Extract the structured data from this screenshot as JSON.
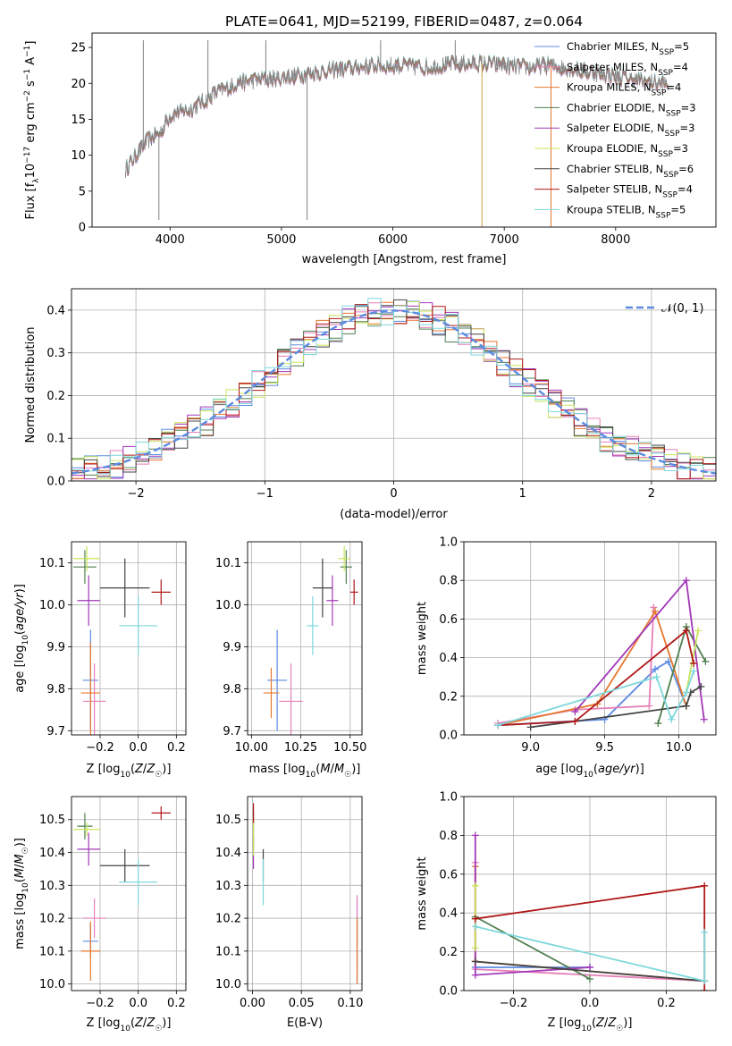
{
  "colors": {
    "Chabrier MILES": "#5b8be0",
    "Salpeter MILES": "#e67fb8",
    "Kroupa MILES": "#e6772e",
    "Chabrier ELODIE": "#4f7f4f",
    "Salpeter ELODIE": "#a238b8",
    "Kroupa ELODIE": "#c8e65a",
    "Chabrier STELIB": "#444444",
    "Salpeter STELIB": "#b01818",
    "Kroupa STELIB": "#7dd8dc",
    "normal_curve": "#5b8be0",
    "spectrum_gray": "#808080"
  },
  "chart_data": [
    {
      "id": "spectrum",
      "type": "line",
      "title": "PLATE=0641, MJD=52199, FIBERID=0487, z=0.064",
      "xlabel": "wavelength [Angstrom, rest frame]",
      "ylabel": "Flux [f_λ 10^-17 erg cm^-2 s^-1 A^-1]",
      "xlim": [
        3300,
        8900
      ],
      "ylim": [
        0,
        27
      ],
      "xticks": [
        4000,
        5000,
        6000,
        7000,
        8000
      ],
      "yticks": [
        0,
        5,
        10,
        15,
        20,
        25
      ],
      "grid": false,
      "legend_position": "right",
      "legend": [
        {
          "name": "Chabrier MILES",
          "nssp": "5"
        },
        {
          "name": "Salpeter MILES",
          "nssp": "4"
        },
        {
          "name": "Kroupa MILES",
          "nssp": "4"
        },
        {
          "name": "Chabrier ELODIE",
          "nssp": "3"
        },
        {
          "name": "Salpeter ELODIE",
          "nssp": "3"
        },
        {
          "name": "Kroupa ELODIE",
          "nssp": "3"
        },
        {
          "name": "Chabrier STELIB",
          "nssp": "6"
        },
        {
          "name": "Salpeter STELIB",
          "nssp": "4"
        },
        {
          "name": "Kroupa STELIB",
          "nssp": "5"
        }
      ],
      "continuum": [
        [
          3600,
          8
        ],
        [
          3700,
          10
        ],
        [
          3800,
          12
        ],
        [
          3900,
          13
        ],
        [
          4000,
          15.5
        ],
        [
          4200,
          16.5
        ],
        [
          4400,
          18.5
        ],
        [
          4600,
          20
        ],
        [
          4800,
          20.5
        ],
        [
          5000,
          20.8
        ],
        [
          5200,
          21.2
        ],
        [
          5400,
          21.8
        ],
        [
          5600,
          22
        ],
        [
          5800,
          22.5
        ],
        [
          6000,
          22.5
        ],
        [
          6200,
          22.2
        ],
        [
          6400,
          22.5
        ],
        [
          6600,
          22.7
        ],
        [
          6800,
          22.8
        ],
        [
          7000,
          22.5
        ],
        [
          7200,
          22.2
        ],
        [
          7400,
          22.5
        ],
        [
          7600,
          22
        ],
        [
          7800,
          21.5
        ],
        [
          8000,
          21
        ],
        [
          8200,
          20.5
        ],
        [
          8400,
          20
        ]
      ],
      "spikes": [
        [
          3760,
          26
        ],
        [
          3900,
          1
        ],
        [
          4340,
          26
        ],
        [
          4860,
          26
        ],
        [
          5230,
          1
        ],
        [
          5890,
          26
        ],
        [
          6560,
          26
        ],
        [
          6800,
          0
        ],
        [
          7420,
          0
        ]
      ]
    },
    {
      "id": "residuals",
      "type": "histogram",
      "xlabel": "(data-model)/error",
      "ylabel": "Normed distribution",
      "xlim": [
        -2.5,
        2.5
      ],
      "ylim": [
        0,
        0.45
      ],
      "xticks": [
        -2,
        -1,
        0,
        1,
        2
      ],
      "yticks": [
        0.0,
        0.1,
        0.2,
        0.3,
        0.4
      ],
      "grid": true,
      "legend_position": "top-right",
      "reference_label": "𝒩(0, 1)",
      "bins": [
        -2.5,
        2.5,
        50
      ]
    },
    {
      "id": "age_vs_Z",
      "type": "scatter",
      "xlabel": "Z [log10(Z/Z☉)]",
      "ylabel": "age [log10(age/yr)]",
      "xlim": [
        -0.35,
        0.25
      ],
      "ylim": [
        9.69,
        10.15
      ],
      "xticks": [
        -0.2,
        0.0,
        0.2
      ],
      "yticks": [
        9.7,
        9.8,
        9.9,
        10.0,
        10.1
      ],
      "grid": true,
      "points": [
        {
          "s": "Chabrier MILES",
          "x": -0.25,
          "xerr": 0.04,
          "y": 9.82,
          "yerr": 0.12
        },
        {
          "s": "Salpeter MILES",
          "x": -0.23,
          "xerr": 0.06,
          "y": 9.77,
          "yerr": 0.09
        },
        {
          "s": "Kroupa MILES",
          "x": -0.25,
          "xerr": 0.05,
          "y": 9.79,
          "yerr": 0.12
        },
        {
          "s": "Chabrier ELODIE",
          "x": -0.28,
          "xerr": 0.06,
          "y": 10.09,
          "yerr": 0.04
        },
        {
          "s": "Salpeter ELODIE",
          "x": -0.26,
          "xerr": 0.06,
          "y": 10.01,
          "yerr": 0.06
        },
        {
          "s": "Kroupa ELODIE",
          "x": -0.27,
          "xerr": 0.07,
          "y": 10.11,
          "yerr": 0.03
        },
        {
          "s": "Chabrier STELIB",
          "x": -0.07,
          "xerr": 0.13,
          "y": 10.04,
          "yerr": 0.07
        },
        {
          "s": "Salpeter STELIB",
          "x": 0.12,
          "xerr": 0.05,
          "y": 10.03,
          "yerr": 0.03
        },
        {
          "s": "Kroupa STELIB",
          "x": 0.0,
          "xerr": 0.1,
          "y": 9.95,
          "yerr": 0.07
        }
      ]
    },
    {
      "id": "age_vs_mass",
      "type": "scatter",
      "xlabel": "mass [log10(M/M☉)]",
      "ylabel": "",
      "xlim": [
        9.98,
        10.56
      ],
      "ylim": [
        9.69,
        10.15
      ],
      "xticks": [
        10.0,
        10.25,
        10.5
      ],
      "yticks": [
        9.7,
        9.8,
        9.9,
        10.0,
        10.1
      ],
      "grid": true,
      "points": [
        {
          "s": "Chabrier MILES",
          "x": 10.13,
          "xerr": 0.05,
          "y": 9.82,
          "yerr": 0.12
        },
        {
          "s": "Salpeter MILES",
          "x": 10.2,
          "xerr": 0.06,
          "y": 9.77,
          "yerr": 0.09
        },
        {
          "s": "Kroupa MILES",
          "x": 10.1,
          "xerr": 0.04,
          "y": 9.79,
          "yerr": 0.06
        },
        {
          "s": "Chabrier ELODIE",
          "x": 10.48,
          "xerr": 0.03,
          "y": 10.09,
          "yerr": 0.04
        },
        {
          "s": "Salpeter ELODIE",
          "x": 10.41,
          "xerr": 0.03,
          "y": 10.01,
          "yerr": 0.06
        },
        {
          "s": "Kroupa ELODIE",
          "x": 10.47,
          "xerr": 0.03,
          "y": 10.11,
          "yerr": 0.03
        },
        {
          "s": "Chabrier STELIB",
          "x": 10.36,
          "xerr": 0.05,
          "y": 10.04,
          "yerr": 0.07
        },
        {
          "s": "Salpeter STELIB",
          "x": 10.52,
          "xerr": 0.02,
          "y": 10.03,
          "yerr": 0.03
        },
        {
          "s": "Kroupa STELIB",
          "x": 10.31,
          "xerr": 0.03,
          "y": 9.95,
          "yerr": 0.07
        }
      ]
    },
    {
      "id": "weight_vs_age",
      "type": "line",
      "xlabel": "age [log10(age/yr)]",
      "ylabel": "mass weight",
      "xlim": [
        8.55,
        10.25
      ],
      "ylim": [
        0,
        1
      ],
      "xticks": [
        9.0,
        9.5,
        10.0
      ],
      "yticks": [
        0.0,
        0.2,
        0.4,
        0.6,
        0.8,
        1.0
      ],
      "grid": true,
      "series": [
        {
          "s": "Chabrier MILES",
          "x": [
            8.78,
            9.5,
            9.84,
            9.93,
            10.05
          ],
          "y": [
            0.05,
            0.08,
            0.34,
            0.38,
            0.15
          ]
        },
        {
          "s": "Salpeter MILES",
          "x": [
            8.78,
            9.3,
            9.8,
            9.83
          ],
          "y": [
            0.06,
            0.13,
            0.15,
            0.66
          ]
        },
        {
          "s": "Kroupa MILES",
          "x": [
            8.78,
            9.45,
            9.84,
            10.05
          ],
          "y": [
            0.05,
            0.16,
            0.64,
            0.15
          ]
        },
        {
          "s": "Chabrier ELODIE",
          "x": [
            9.86,
            10.05,
            10.18
          ],
          "y": [
            0.06,
            0.56,
            0.38
          ]
        },
        {
          "s": "Salpeter ELODIE",
          "x": [
            9.3,
            10.05,
            10.17
          ],
          "y": [
            0.12,
            0.8,
            0.08
          ]
        },
        {
          "s": "Kroupa ELODIE",
          "x": [
            10.05,
            10.13
          ],
          "y": [
            0.22,
            0.54
          ]
        },
        {
          "s": "Chabrier STELIB",
          "x": [
            9.0,
            9.3,
            10.05,
            10.08,
            10.15
          ],
          "y": [
            0.04,
            0.07,
            0.15,
            0.22,
            0.25
          ]
        },
        {
          "s": "Salpeter STELIB",
          "x": [
            8.78,
            9.3,
            10.05,
            10.1
          ],
          "y": [
            0.05,
            0.07,
            0.54,
            0.37
          ]
        },
        {
          "s": "Kroupa STELIB",
          "x": [
            8.78,
            9.85,
            9.95,
            10.05,
            10.1
          ],
          "y": [
            0.05,
            0.3,
            0.08,
            0.22,
            0.33
          ]
        }
      ]
    },
    {
      "id": "mass_vs_Z",
      "type": "scatter",
      "xlabel": "Z [log10(Z/Z☉)]",
      "ylabel": "mass [log10(M/M☉)]",
      "xlim": [
        -0.35,
        0.25
      ],
      "ylim": [
        9.98,
        10.57
      ],
      "xticks": [
        -0.2,
        0.0,
        0.2
      ],
      "yticks": [
        10.0,
        10.1,
        10.2,
        10.3,
        10.4,
        10.5
      ],
      "grid": true,
      "points": [
        {
          "s": "Chabrier MILES",
          "x": -0.25,
          "xerr": 0.04,
          "y": 10.13,
          "yerr": 0.05
        },
        {
          "s": "Salpeter MILES",
          "x": -0.23,
          "xerr": 0.06,
          "y": 10.2,
          "yerr": 0.06
        },
        {
          "s": "Kroupa MILES",
          "x": -0.25,
          "xerr": 0.05,
          "y": 10.1,
          "yerr": 0.09
        },
        {
          "s": "Chabrier ELODIE",
          "x": -0.28,
          "xerr": 0.04,
          "y": 10.48,
          "yerr": 0.04
        },
        {
          "s": "Salpeter ELODIE",
          "x": -0.26,
          "xerr": 0.06,
          "y": 10.41,
          "yerr": 0.05
        },
        {
          "s": "Kroupa ELODIE",
          "x": -0.27,
          "xerr": 0.07,
          "y": 10.47,
          "yerr": 0.02
        },
        {
          "s": "Chabrier STELIB",
          "x": -0.07,
          "xerr": 0.13,
          "y": 10.36,
          "yerr": 0.05
        },
        {
          "s": "Salpeter STELIB",
          "x": 0.12,
          "xerr": 0.05,
          "y": 10.52,
          "yerr": 0.02
        },
        {
          "s": "Kroupa STELIB",
          "x": 0.0,
          "xerr": 0.1,
          "y": 10.31,
          "yerr": 0.07
        }
      ]
    },
    {
      "id": "mass_vs_ebv",
      "type": "scatter",
      "xlabel": "E(B-V)",
      "ylabel": "",
      "xlim": [
        -0.005,
        0.112
      ],
      "ylim": [
        9.98,
        10.57
      ],
      "xticks": [
        0.0,
        0.05,
        0.1
      ],
      "yticks": [
        10.0,
        10.1,
        10.2,
        10.3,
        10.4,
        10.5
      ],
      "grid": true,
      "points": [
        {
          "s": "Chabrier MILES",
          "x": 0.107,
          "xerr": 0,
          "y": 10.13,
          "yerr": 0.13
        },
        {
          "s": "Salpeter MILES",
          "x": 0.107,
          "xerr": 0,
          "y": 10.15,
          "yerr": 0.12
        },
        {
          "s": "Kroupa MILES",
          "x": 0.107,
          "xerr": 0,
          "y": 10.1,
          "yerr": 0.1
        },
        {
          "s": "Chabrier ELODIE",
          "x": 0.001,
          "xerr": 0,
          "y": 10.47,
          "yerr": 0.06
        },
        {
          "s": "Salpeter ELODIE",
          "x": 0.001,
          "xerr": 0,
          "y": 10.4,
          "yerr": 0.05
        },
        {
          "s": "Kroupa ELODIE",
          "x": 0.001,
          "xerr": 0,
          "y": 10.45,
          "yerr": 0.06
        },
        {
          "s": "Chabrier STELIB",
          "x": 0.011,
          "xerr": 0,
          "y": 10.36,
          "yerr": 0.05
        },
        {
          "s": "Salpeter STELIB",
          "x": 0.001,
          "xerr": 0,
          "y": 10.52,
          "yerr": 0.03
        },
        {
          "s": "Kroupa STELIB",
          "x": 0.011,
          "xerr": 0,
          "y": 10.31,
          "yerr": 0.07
        }
      ]
    },
    {
      "id": "weight_vs_Z",
      "type": "line",
      "xlabel": "Z [log10(Z/Z☉)]",
      "ylabel": "mass weight",
      "xlim": [
        -0.33,
        0.33
      ],
      "ylim": [
        0,
        1
      ],
      "xticks": [
        -0.2,
        0.0,
        0.2
      ],
      "yticks": [
        0.0,
        0.2,
        0.4,
        0.6,
        0.8,
        1.0
      ],
      "grid": true,
      "series": [
        {
          "s": "Chabrier MILES",
          "x": [
            -0.3,
            0.0
          ],
          "y": [
            0.12,
            0.12
          ]
        },
        {
          "s": "Salpeter MILES",
          "x": [
            -0.3,
            -0.3,
            0.3
          ],
          "y": [
            0.66,
            0.11,
            0.05
          ]
        },
        {
          "s": "Kroupa MILES",
          "x": [
            -0.3,
            -0.3,
            0.3
          ],
          "y": [
            0.64,
            0.15,
            0.05
          ]
        },
        {
          "s": "Chabrier ELODIE",
          "x": [
            -0.3,
            0.0
          ],
          "y": [
            0.38,
            0.06
          ]
        },
        {
          "s": "Salpeter ELODIE",
          "x": [
            -0.3,
            -0.3,
            0.0
          ],
          "y": [
            0.8,
            0.08,
            0.12
          ]
        },
        {
          "s": "Kroupa ELODIE",
          "x": [
            -0.3,
            -0.3
          ],
          "y": [
            0.54,
            0.22
          ]
        },
        {
          "s": "Chabrier STELIB",
          "x": [
            -0.3,
            0.3
          ],
          "y": [
            0.15,
            0.05
          ]
        },
        {
          "s": "Salpeter STELIB",
          "x": [
            -0.3,
            0.3,
            0.3
          ],
          "y": [
            0.37,
            0.54,
            0.0
          ]
        },
        {
          "s": "Kroupa STELIB",
          "x": [
            -0.3,
            0.3,
            0.3
          ],
          "y": [
            0.33,
            0.05,
            0.3
          ]
        }
      ]
    }
  ]
}
